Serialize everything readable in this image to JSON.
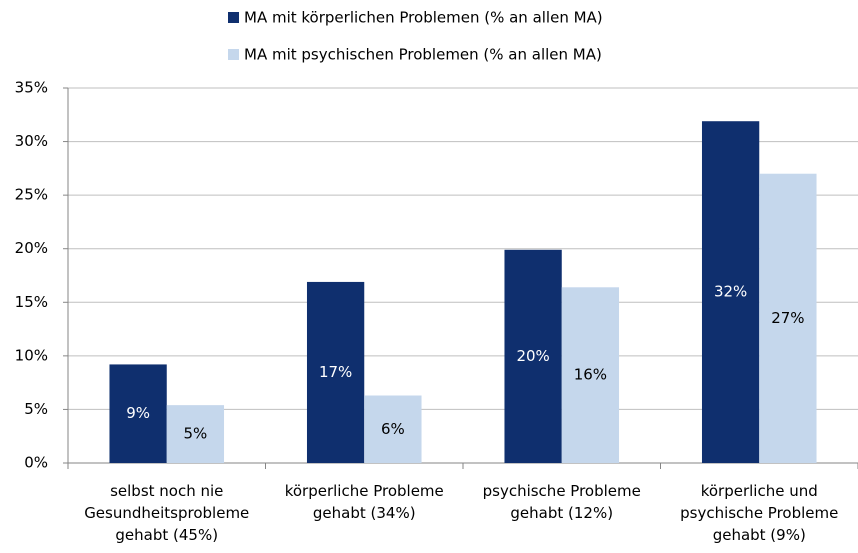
{
  "chart_data": {
    "type": "bar",
    "categories": [
      "selbst noch nie Gesundheitsprobleme gehabt (45%)",
      "körperliche Probleme gehabt (34%)",
      "psychische Probleme gehabt (12%)",
      "körperliche und psychische Probleme gehabt (9%)"
    ],
    "series": [
      {
        "name": "MA mit körperlichen Problemen (% an allen MA)",
        "color": "#0f2f6e",
        "values": [
          9.2,
          16.9,
          19.9,
          31.9
        ],
        "value_labels": [
          "9%",
          "17%",
          "20%",
          "32%"
        ]
      },
      {
        "name": "MA mit psychischen Problemen (% an allen MA)",
        "color": "#c5d7ec",
        "values": [
          5.4,
          6.3,
          16.4,
          27.0
        ],
        "value_labels": [
          "5%",
          "6%",
          "16%",
          "27%"
        ]
      }
    ],
    "ylim": [
      0,
      35
    ],
    "yticks": [
      {
        "value": 0,
        "label": "0%"
      },
      {
        "value": 5,
        "label": "5%"
      },
      {
        "value": 10,
        "label": "10%"
      },
      {
        "value": 15,
        "label": "15%"
      },
      {
        "value": 20,
        "label": "20%"
      },
      {
        "value": 25,
        "label": "25%"
      },
      {
        "value": 30,
        "label": "30%"
      },
      {
        "value": 35,
        "label": "35%"
      }
    ],
    "grid": true,
    "legend": "top"
  }
}
